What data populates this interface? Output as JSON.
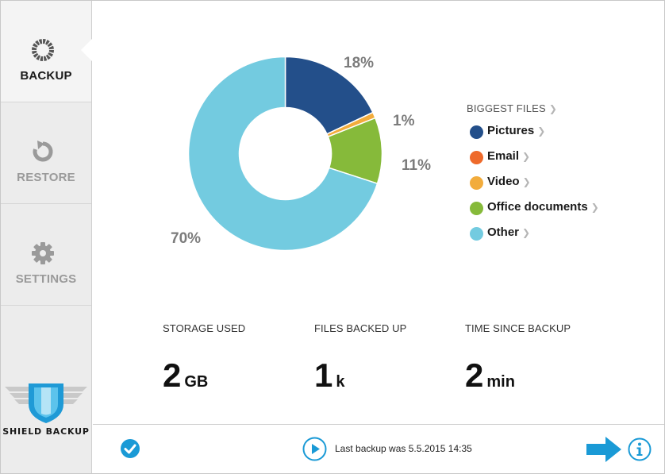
{
  "sidebar": {
    "items": [
      {
        "label": "BACKUP",
        "icon": "backup-ring-icon",
        "active": true
      },
      {
        "label": "RESTORE",
        "icon": "restore-icon",
        "active": false
      },
      {
        "label": "SETTINGS",
        "icon": "gear-icon",
        "active": false
      }
    ],
    "brand": "SHIELD BACKUP"
  },
  "chart_data": {
    "type": "pie",
    "categories": [
      "Pictures",
      "Video",
      "Office documents",
      "Other"
    ],
    "values": [
      18,
      1,
      11,
      70
    ],
    "labels": [
      "18%",
      "1%",
      "11%",
      "70%"
    ],
    "colors": [
      "#234f8a",
      "#f2ac3c",
      "#86ba3a",
      "#73cbe0"
    ],
    "donut": true
  },
  "legend": {
    "title": "BIGGEST FILES",
    "items": [
      {
        "label": "Pictures",
        "color": "#234f8a"
      },
      {
        "label": "Email",
        "color": "#ee6a2b"
      },
      {
        "label": "Video",
        "color": "#f2ac3c"
      },
      {
        "label": "Office documents",
        "color": "#86ba3a"
      },
      {
        "label": "Other",
        "color": "#73cbe0"
      }
    ]
  },
  "stats": [
    {
      "label": "STORAGE USED",
      "value": "2",
      "unit": "GB"
    },
    {
      "label": "FILES BACKED UP",
      "value": "1",
      "unit": "k"
    },
    {
      "label": "TIME SINCE BACKUP",
      "value": "2",
      "unit": "min"
    }
  ],
  "footer": {
    "last_backup": "Last backup was 5.5.2015 14:35"
  },
  "colors": {
    "accent": "#1a9ad6",
    "sidebar_bg": "#ececec"
  }
}
